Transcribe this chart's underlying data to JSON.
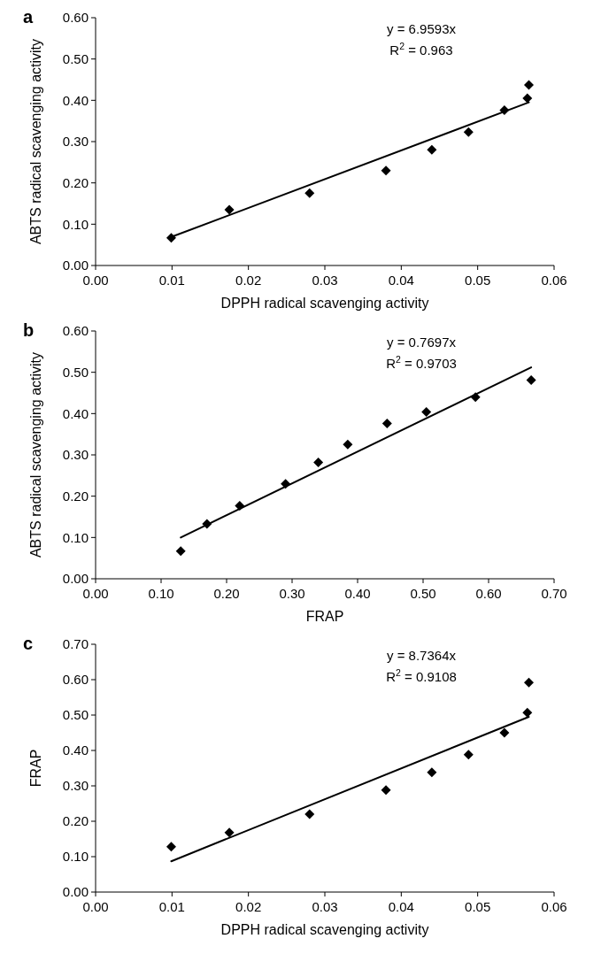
{
  "chart_data": [
    {
      "type": "scatter",
      "title": "a",
      "xlabel": "DPPH radical scavenging activity",
      "ylabel": "ABTS radical scavenging activity",
      "xlim": [
        0,
        0.06
      ],
      "xticks": [
        {
          "value": 0,
          "label": "0.00"
        },
        {
          "value": 0.01,
          "label": "0.01"
        },
        {
          "value": 0.02,
          "label": "0.02"
        },
        {
          "value": 0.03,
          "label": "0.03"
        },
        {
          "value": 0.04,
          "label": "0.04"
        },
        {
          "value": 0.05,
          "label": "0.05"
        },
        {
          "value": 0.06,
          "label": "0.06"
        }
      ],
      "ylim": [
        0,
        0.6
      ],
      "yticks": [
        {
          "value": 0,
          "label": "0.00"
        },
        {
          "value": 0.1,
          "label": "0.10"
        },
        {
          "value": 0.2,
          "label": "0.20"
        },
        {
          "value": 0.3,
          "label": "0.30"
        },
        {
          "value": 0.4,
          "label": "0.40"
        },
        {
          "value": 0.5,
          "label": "0.50"
        },
        {
          "value": 0.6,
          "label": "0.60"
        }
      ],
      "annotations": [
        "y = 6.9593x",
        "R$^{2}$ = 0.963"
      ],
      "series": [
        {
          "marker": "diamond",
          "color": "#000000",
          "x": [
            0.0099,
            0.0175,
            0.028,
            0.038,
            0.044,
            0.0488,
            0.0535,
            0.0565,
            0.0567
          ],
          "values": [
            0.067,
            0.135,
            0.175,
            0.23,
            0.28,
            0.323,
            0.376,
            0.405,
            0.437
          ]
        },
        {
          "type": "line",
          "marker": "none",
          "color": "#000000",
          "x": [
            0.0099,
            0.0567
          ],
          "values": [
            0.069,
            0.395
          ]
        }
      ]
    },
    {
      "type": "scatter",
      "title": "b",
      "xlabel": "FRAP",
      "ylabel": "ABTS radical scavenging activity",
      "xlim": [
        0,
        0.7
      ],
      "xticks": [
        {
          "value": 0,
          "label": "0.00"
        },
        {
          "value": 0.1,
          "label": "0.10"
        },
        {
          "value": 0.2,
          "label": "0.20"
        },
        {
          "value": 0.3,
          "label": "0.30"
        },
        {
          "value": 0.4,
          "label": "0.40"
        },
        {
          "value": 0.5,
          "label": "0.50"
        },
        {
          "value": 0.6,
          "label": "0.60"
        },
        {
          "value": 0.7,
          "label": "0.70"
        }
      ],
      "ylim": [
        0,
        0.6
      ],
      "yticks": [
        {
          "value": 0,
          "label": "0.00"
        },
        {
          "value": 0.1,
          "label": "0.10"
        },
        {
          "value": 0.2,
          "label": "0.20"
        },
        {
          "value": 0.3,
          "label": "0.30"
        },
        {
          "value": 0.4,
          "label": "0.40"
        },
        {
          "value": 0.5,
          "label": "0.50"
        },
        {
          "value": 0.6,
          "label": "0.60"
        }
      ],
      "annotations": [
        "y = 0.7697x",
        "R$^{2}$ = 0.9703"
      ],
      "series": [
        {
          "marker": "diamond",
          "color": "#000000",
          "x": [
            0.13,
            0.17,
            0.22,
            0.29,
            0.34,
            0.385,
            0.445,
            0.505,
            0.58,
            0.665
          ],
          "values": [
            0.067,
            0.133,
            0.177,
            0.23,
            0.282,
            0.325,
            0.376,
            0.404,
            0.44,
            0.481
          ]
        },
        {
          "type": "line",
          "marker": "none",
          "color": "#000000",
          "x": [
            0.13,
            0.665
          ],
          "values": [
            0.1,
            0.512
          ]
        }
      ]
    },
    {
      "type": "scatter",
      "title": "c",
      "xlabel": "DPPH radical scavenging activity",
      "ylabel": "FRAP",
      "xlim": [
        0,
        0.06
      ],
      "xticks": [
        {
          "value": 0,
          "label": "0.00"
        },
        {
          "value": 0.01,
          "label": "0.01"
        },
        {
          "value": 0.02,
          "label": "0.02"
        },
        {
          "value": 0.03,
          "label": "0.03"
        },
        {
          "value": 0.04,
          "label": "0.04"
        },
        {
          "value": 0.05,
          "label": "0.05"
        },
        {
          "value": 0.06,
          "label": "0.06"
        }
      ],
      "ylim": [
        0,
        0.7
      ],
      "yticks": [
        {
          "value": 0,
          "label": "0.00"
        },
        {
          "value": 0.1,
          "label": "0.10"
        },
        {
          "value": 0.2,
          "label": "0.20"
        },
        {
          "value": 0.3,
          "label": "0.30"
        },
        {
          "value": 0.4,
          "label": "0.40"
        },
        {
          "value": 0.5,
          "label": "0.50"
        },
        {
          "value": 0.6,
          "label": "0.60"
        },
        {
          "value": 0.7,
          "label": "0.70"
        }
      ],
      "annotations": [
        "y = 8.7364x",
        "R$^{2}$ = 0.9108"
      ],
      "series": [
        {
          "marker": "diamond",
          "color": "#000000",
          "x": [
            0.0099,
            0.0175,
            0.028,
            0.038,
            0.044,
            0.0488,
            0.0535,
            0.0565,
            0.0567
          ],
          "values": [
            0.128,
            0.168,
            0.22,
            0.288,
            0.338,
            0.388,
            0.45,
            0.507,
            0.592
          ]
        },
        {
          "type": "line",
          "marker": "none",
          "color": "#000000",
          "x": [
            0.0099,
            0.0567
          ],
          "values": [
            0.087,
            0.495
          ]
        }
      ]
    }
  ]
}
